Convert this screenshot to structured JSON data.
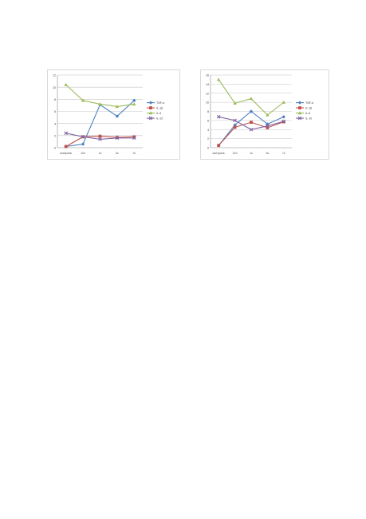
{
  "chart_data": [
    {
      "type": "line",
      "categories": [
        "контроль",
        "12ч",
        "1с",
        "3с",
        "7с"
      ],
      "ylim": [
        0,
        12
      ],
      "yticks": [
        0,
        2,
        4,
        6,
        8,
        10,
        12
      ],
      "grid": true,
      "legend_position": "right",
      "series": [
        {
          "name": "TNF-α",
          "color": "#4f81bd",
          "marker": "diamond",
          "values": [
            0.2,
            0.6,
            7.1,
            5.2,
            7.8
          ]
        },
        {
          "name": "IL-1β",
          "color": "#c0504d",
          "marker": "square",
          "values": [
            0.2,
            1.8,
            1.9,
            1.7,
            1.8
          ]
        },
        {
          "name": "IL-6",
          "color": "#9bbb59",
          "marker": "triangle",
          "values": [
            10.4,
            7.8,
            7.2,
            6.8,
            7.2
          ]
        },
        {
          "name": "IL-10",
          "color": "#8064a2",
          "marker": "x",
          "values": [
            2.4,
            1.8,
            1.4,
            1.6,
            1.6
          ]
        }
      ]
    },
    {
      "type": "line",
      "categories": [
        "контроль",
        "12ч",
        "1с",
        "3с",
        "7с"
      ],
      "ylim": [
        0,
        16
      ],
      "yticks": [
        0,
        2,
        4,
        6,
        8,
        10,
        12,
        14,
        16
      ],
      "grid": true,
      "legend_position": "right",
      "series": [
        {
          "name": "TNF-α",
          "color": "#4f81bd",
          "marker": "diamond",
          "values": [
            0.5,
            5.0,
            8.0,
            5.2,
            6.8
          ]
        },
        {
          "name": "IL-1β",
          "color": "#c0504d",
          "marker": "square",
          "values": [
            0.5,
            4.5,
            5.6,
            4.4,
            5.7
          ]
        },
        {
          "name": "IL-6",
          "color": "#9bbb59",
          "marker": "triangle",
          "values": [
            15.0,
            9.8,
            10.8,
            7.2,
            10.0
          ]
        },
        {
          "name": "IL-10",
          "color": "#8064a2",
          "marker": "x",
          "values": [
            6.8,
            6.0,
            4.0,
            4.8,
            5.8
          ]
        }
      ]
    }
  ]
}
